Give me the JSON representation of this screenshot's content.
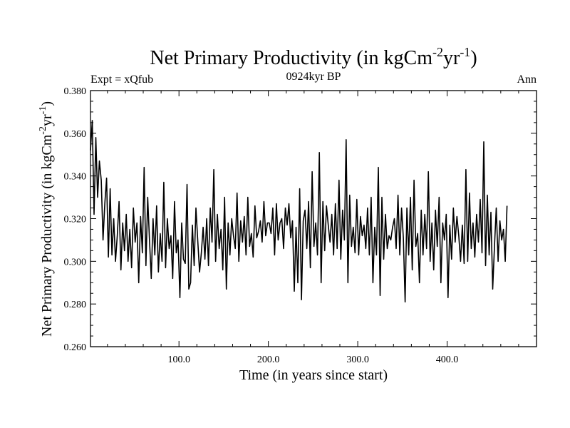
{
  "chart_data": {
    "type": "line",
    "title": "Net Primary Productivity (in kgCm",
    "title_sup1": "-2",
    "title_mid": "yr",
    "title_sup2": "-1",
    "title_end": ")",
    "subtitle_left": "Expt = xQfub",
    "subtitle_center": "0924kyr BP",
    "subtitle_right": "Ann",
    "xlabel": "Time (in years since start)",
    "ylabel": "Net Primary Productivity (in kgCm",
    "ylabel_sup1": "-2",
    "ylabel_mid": "yr",
    "ylabel_sup2": "-1",
    "ylabel_end": ")",
    "xlim": [
      1,
      500
    ],
    "ylim": [
      0.26,
      0.38
    ],
    "xticks": [
      100,
      200,
      300,
      400
    ],
    "xtick_labels": [
      "100.0",
      "200.0",
      "300.0",
      "400.0"
    ],
    "yticks": [
      0.26,
      0.28,
      0.3,
      0.32,
      0.34,
      0.36,
      0.38
    ],
    "ytick_labels": [
      "0.260",
      "0.280",
      "0.300",
      "0.320",
      "0.340",
      "0.360",
      "0.380"
    ],
    "grid": false,
    "line_color": "#000000",
    "series": [
      {
        "x_start": 1,
        "x_step": 2,
        "values": [
          0.352,
          0.366,
          0.322,
          0.358,
          0.33,
          0.347,
          0.338,
          0.31,
          0.327,
          0.339,
          0.302,
          0.334,
          0.303,
          0.32,
          0.3,
          0.312,
          0.328,
          0.296,
          0.318,
          0.305,
          0.322,
          0.3,
          0.315,
          0.297,
          0.325,
          0.309,
          0.318,
          0.29,
          0.321,
          0.304,
          0.344,
          0.298,
          0.33,
          0.31,
          0.292,
          0.32,
          0.303,
          0.326,
          0.295,
          0.313,
          0.3,
          0.337,
          0.297,
          0.32,
          0.306,
          0.312,
          0.292,
          0.328,
          0.304,
          0.31,
          0.283,
          0.318,
          0.301,
          0.299,
          0.336,
          0.287,
          0.29,
          0.317,
          0.298,
          0.325,
          0.31,
          0.295,
          0.304,
          0.316,
          0.301,
          0.32,
          0.298,
          0.325,
          0.309,
          0.343,
          0.3,
          0.322,
          0.306,
          0.315,
          0.296,
          0.33,
          0.287,
          0.318,
          0.303,
          0.32,
          0.312,
          0.306,
          0.332,
          0.3,
          0.319,
          0.309,
          0.321,
          0.303,
          0.33,
          0.307,
          0.313,
          0.302,
          0.326,
          0.311,
          0.314,
          0.319,
          0.309,
          0.328,
          0.312,
          0.318,
          0.318,
          0.313,
          0.325,
          0.303,
          0.327,
          0.31,
          0.318,
          0.32,
          0.306,
          0.325,
          0.317,
          0.327,
          0.311,
          0.319,
          0.286,
          0.316,
          0.29,
          0.334,
          0.282,
          0.319,
          0.324,
          0.306,
          0.328,
          0.297,
          0.342,
          0.307,
          0.318,
          0.303,
          0.351,
          0.29,
          0.328,
          0.305,
          0.326,
          0.317,
          0.309,
          0.322,
          0.303,
          0.327,
          0.306,
          0.338,
          0.301,
          0.324,
          0.31,
          0.357,
          0.29,
          0.331,
          0.307,
          0.316,
          0.304,
          0.329,
          0.303,
          0.321,
          0.312,
          0.317,
          0.306,
          0.325,
          0.303,
          0.33,
          0.29,
          0.316,
          0.303,
          0.344,
          0.284,
          0.33,
          0.301,
          0.322,
          0.306,
          0.312,
          0.31,
          0.316,
          0.32,
          0.306,
          0.331,
          0.303,
          0.325,
          0.311,
          0.281,
          0.325,
          0.303,
          0.33,
          0.296,
          0.338,
          0.307,
          0.313,
          0.29,
          0.324,
          0.303,
          0.322,
          0.306,
          0.342,
          0.3,
          0.318,
          0.296,
          0.324,
          0.307,
          0.33,
          0.29,
          0.318,
          0.31,
          0.322,
          0.283,
          0.317,
          0.301,
          0.325,
          0.309,
          0.321,
          0.312,
          0.3,
          0.317,
          0.299,
          0.343,
          0.3,
          0.332,
          0.306,
          0.318,
          0.302,
          0.322,
          0.309,
          0.329,
          0.304,
          0.356,
          0.298,
          0.331,
          0.303,
          0.323,
          0.287,
          0.307,
          0.325,
          0.3,
          0.319,
          0.31,
          0.315,
          0.3,
          0.326
        ]
      }
    ]
  }
}
